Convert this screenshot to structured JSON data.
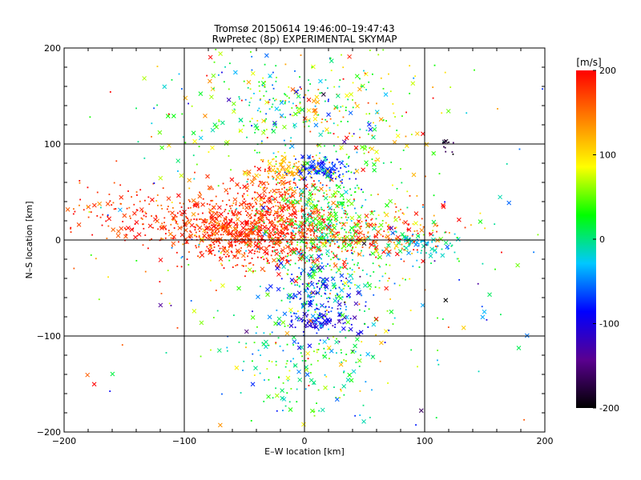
{
  "chart_data": {
    "type": "scatter",
    "title": "Tromsø 20150614 19:46:00–19:47:43",
    "subtitle": "RwPretec (8p) EXPERIMENTAL SKYMAP",
    "xlabel": "E–W location [km]",
    "ylabel": "N–S location [km]",
    "xlim": [
      -200,
      200
    ],
    "ylim": [
      -200,
      200
    ],
    "xticks": [
      -200,
      -100,
      0,
      100,
      200
    ],
    "yticks": [
      -200,
      -100,
      0,
      100,
      200
    ],
    "grid": true,
    "colorbar": {
      "title": "[m/s]",
      "range": [
        -200,
        200
      ],
      "ticks": [
        -200,
        -100,
        0,
        100,
        200
      ],
      "colors": [
        "#000000",
        "#5a0090",
        "#0000ff",
        "#00c8ff",
        "#00ff00",
        "#ffff00",
        "#ff8000",
        "#ff0000"
      ]
    },
    "clusters": [
      {
        "cx": -30,
        "cy": 10,
        "sx": 30,
        "sy": 18,
        "n": 700,
        "v": 185,
        "vs": 20
      },
      {
        "cx": -130,
        "cy": 25,
        "sx": 40,
        "sy": 18,
        "n": 190,
        "v": 180,
        "vs": 25
      },
      {
        "cx": -75,
        "cy": 10,
        "sx": 25,
        "sy": 15,
        "n": 200,
        "v": 175,
        "vs": 25
      },
      {
        "cx": -25,
        "cy": 50,
        "sx": 18,
        "sy": 12,
        "n": 150,
        "v": 170,
        "vs": 25
      },
      {
        "cx": -15,
        "cy": 75,
        "sx": 12,
        "sy": 6,
        "n": 80,
        "v": 115,
        "vs": 15
      },
      {
        "cx": 15,
        "cy": 73,
        "sx": 12,
        "sy": 6,
        "n": 110,
        "v": -75,
        "vs": 12
      },
      {
        "cx": 20,
        "cy": 10,
        "sx": 22,
        "sy": 35,
        "n": 420,
        "v": 20,
        "vs": 35
      },
      {
        "cx": 60,
        "cy": 5,
        "sx": 30,
        "sy": 12,
        "n": 170,
        "v": 165,
        "vs": 40
      },
      {
        "cx": 95,
        "cy": -5,
        "sx": 15,
        "sy": 8,
        "n": 70,
        "v": -25,
        "vs": 25
      },
      {
        "cx": 10,
        "cy": -60,
        "sx": 18,
        "sy": 20,
        "n": 190,
        "v": -70,
        "vs": 40
      },
      {
        "cx": 15,
        "cy": -85,
        "sx": 12,
        "sy": 4,
        "n": 65,
        "v": -100,
        "vs": 15
      },
      {
        "cx": 0,
        "cy": -130,
        "sx": 30,
        "sy": 25,
        "n": 170,
        "v": 15,
        "vs": 45
      },
      {
        "cx": -20,
        "cy": 135,
        "sx": 50,
        "sy": 30,
        "n": 260,
        "v": 20,
        "vs": 60
      },
      {
        "cx": 35,
        "cy": 135,
        "sx": 40,
        "sy": 35,
        "n": 120,
        "v": 100,
        "vs": 80
      },
      {
        "cx": 40,
        "cy": -30,
        "sx": 60,
        "sy": 60,
        "n": 160,
        "v": 40,
        "vs": 70
      },
      {
        "cx": 120,
        "cy": 97,
        "sx": 4,
        "sy": 4,
        "n": 10,
        "v": -180,
        "vs": 10
      },
      {
        "cx": 0,
        "cy": 0,
        "sx": 110,
        "sy": 110,
        "n": 260,
        "v": 60,
        "vs": 110
      }
    ]
  }
}
